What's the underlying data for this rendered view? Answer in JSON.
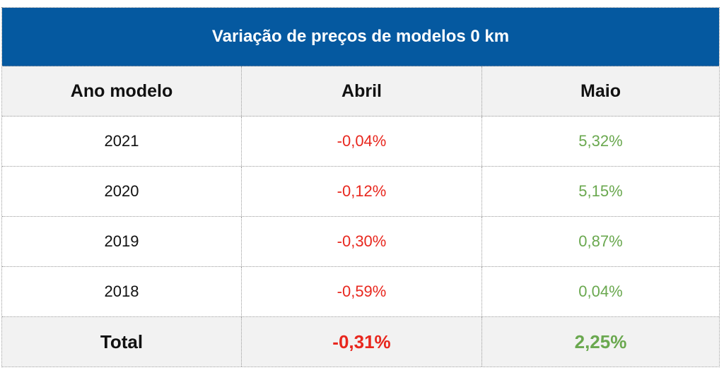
{
  "title": "Variação de preços de modelos 0 km",
  "headers": {
    "col1": "Ano modelo",
    "col2": "Abril",
    "col3": "Maio"
  },
  "rows": [
    {
      "year": "2021",
      "abril": "-0,04%",
      "maio": "5,32%"
    },
    {
      "year": "2020",
      "abril": "-0,12%",
      "maio": "5,15%"
    },
    {
      "year": "2019",
      "abril": "-0,30%",
      "maio": "0,87%"
    },
    {
      "year": "2018",
      "abril": "-0,59%",
      "maio": "0,04%"
    }
  ],
  "total": {
    "label": "Total",
    "abril": "-0,31%",
    "maio": "2,25%"
  },
  "colors": {
    "title_bg": "#0559a0",
    "header_bg": "#f2f2f2",
    "negative": "#e8271e",
    "positive": "#6aa84f"
  }
}
